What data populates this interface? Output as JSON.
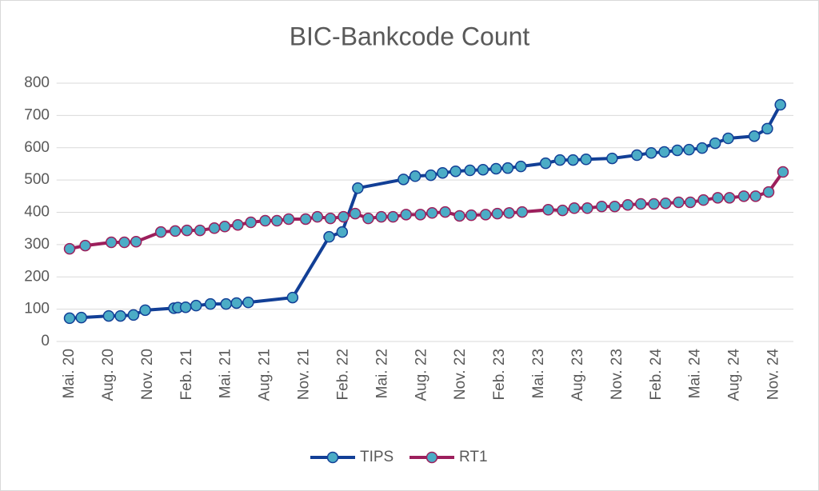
{
  "chart_data": {
    "type": "line",
    "title": "BIC-Bankcode Count",
    "xlim": [
      -1,
      55.5
    ],
    "xticks": [
      {
        "value": 0,
        "label": "Mai. 20"
      },
      {
        "value": 3,
        "label": "Aug. 20"
      },
      {
        "value": 6,
        "label": "Nov. 20"
      },
      {
        "value": 9,
        "label": "Feb. 21"
      },
      {
        "value": 12,
        "label": "Mai. 21"
      },
      {
        "value": 15,
        "label": "Aug. 21"
      },
      {
        "value": 18,
        "label": "Nov. 21"
      },
      {
        "value": 21,
        "label": "Feb. 22"
      },
      {
        "value": 24,
        "label": "Mai. 22"
      },
      {
        "value": 27,
        "label": "Aug. 22"
      },
      {
        "value": 30,
        "label": "Nov. 22"
      },
      {
        "value": 33,
        "label": "Feb. 23"
      },
      {
        "value": 36,
        "label": "Mai. 23"
      },
      {
        "value": 39,
        "label": "Aug. 23"
      },
      {
        "value": 42,
        "label": "Nov. 23"
      },
      {
        "value": 45,
        "label": "Feb. 24"
      },
      {
        "value": 48,
        "label": "Mai. 24"
      },
      {
        "value": 51,
        "label": "Aug. 24"
      },
      {
        "value": 54,
        "label": "Nov. 24"
      }
    ],
    "ylim": [
      0,
      800
    ],
    "yticks": [
      0,
      100,
      200,
      300,
      400,
      500,
      600,
      700,
      800
    ],
    "grid": true,
    "marker_color": "#4bacc6",
    "legend": "bottom",
    "series": [
      {
        "name": "TIPS",
        "color": "#123f96",
        "x": [
          0,
          0.9,
          3,
          3.9,
          4.9,
          5.8,
          8,
          8.3,
          8.9,
          9.7,
          10.8,
          12,
          12.8,
          13.7,
          17.1,
          19.9,
          20.9,
          22.1,
          25.6,
          26.5,
          27.7,
          28.6,
          29.6,
          30.7,
          31.7,
          32.7,
          33.6,
          34.6,
          36.5,
          37.6,
          38.6,
          39.6,
          41.6,
          43.5,
          44.6,
          45.6,
          46.6,
          47.5,
          48.5,
          49.5,
          50.5,
          52.5,
          53.5,
          54.5
        ],
        "values": [
          72,
          74,
          79,
          79,
          82,
          97,
          103,
          105,
          106,
          111,
          116,
          116,
          119,
          121,
          136,
          324,
          339,
          475,
          502,
          512,
          515,
          522,
          527,
          530,
          532,
          535,
          537,
          542,
          552,
          562,
          562,
          564,
          567,
          577,
          584,
          587,
          592,
          594,
          599,
          614,
          629,
          636,
          659,
          733
        ]
      },
      {
        "name": "RT1",
        "color": "#9c1f5c",
        "x": [
          0,
          1.2,
          3.2,
          4.2,
          5.1,
          7,
          8.1,
          9,
          10,
          11.1,
          11.9,
          12.9,
          13.9,
          15,
          15.9,
          16.8,
          18.1,
          19,
          20,
          21,
          21.9,
          22.9,
          23.9,
          24.8,
          25.8,
          26.9,
          27.8,
          28.8,
          29.9,
          30.8,
          31.9,
          32.8,
          33.7,
          34.7,
          36.7,
          37.8,
          38.7,
          39.7,
          40.8,
          41.8,
          42.8,
          43.8,
          44.8,
          45.7,
          46.7,
          47.6,
          48.6,
          49.7,
          50.6,
          51.7,
          52.6,
          53.6,
          54.7
        ],
        "values": [
          287,
          297,
          307,
          307,
          309,
          339,
          342,
          344,
          344,
          351,
          356,
          361,
          369,
          374,
          374,
          379,
          379,
          386,
          381,
          386,
          396,
          381,
          386,
          386,
          393,
          393,
          398,
          401,
          389,
          391,
          393,
          396,
          398,
          401,
          408,
          406,
          413,
          413,
          418,
          418,
          423,
          426,
          426,
          428,
          431,
          431,
          438,
          445,
          445,
          450,
          450,
          463,
          525
        ]
      }
    ]
  }
}
